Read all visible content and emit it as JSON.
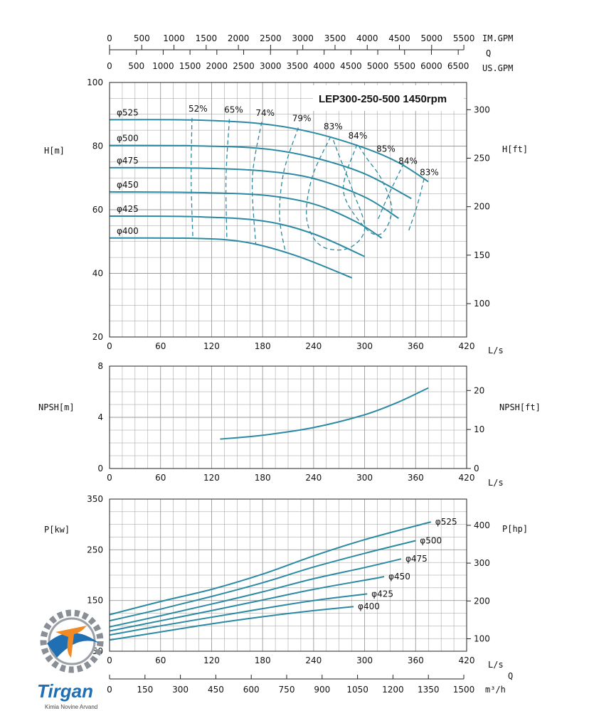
{
  "colors": {
    "curve": "#2b8aa3",
    "grid": "#9a9a9a",
    "axis": "#222222",
    "logo_blue": "#1f6fb2",
    "logo_orange": "#f08a24"
  },
  "logo": {
    "name": "Tirgan",
    "tagline": "Kimia Novine Arvand"
  },
  "chart_data": [
    {
      "id": "head",
      "type": "line",
      "title": "LEP300-250-500 1450rpm",
      "xlabel": "L/s",
      "ylabel": "H[m]",
      "ylabel_right": "H[ft]",
      "xlim": [
        0,
        420
      ],
      "ylim": [
        20,
        100
      ],
      "xticks": [
        0,
        60,
        120,
        180,
        240,
        300,
        360,
        420
      ],
      "yticks": [
        20,
        40,
        60,
        80,
        100
      ],
      "yticks_right": [
        100,
        150,
        200,
        250,
        300
      ],
      "grid": true,
      "top_axes": [
        {
          "unit": "IM.GPM",
          "ticks": [
            0,
            500,
            1000,
            1500,
            2000,
            2500,
            3000,
            3500,
            4000,
            4500,
            5000,
            5500
          ]
        },
        {
          "unit": "US.GPM",
          "ticks": [
            0,
            500,
            1000,
            1500,
            2000,
            2500,
            3000,
            3500,
            4000,
            4500,
            5000,
            5500,
            6000,
            6500
          ]
        }
      ],
      "top_axes_symbol": "Q",
      "series": [
        {
          "name": "φ525",
          "x": [
            0,
            100,
            180,
            240,
            300,
            340,
            375
          ],
          "y": [
            88.3,
            88.2,
            87.0,
            84.2,
            79.4,
            74.8,
            68.8
          ]
        },
        {
          "name": "φ500",
          "x": [
            0,
            100,
            180,
            240,
            300,
            355
          ],
          "y": [
            80.2,
            80.1,
            79.2,
            76.4,
            71.3,
            63.5
          ]
        },
        {
          "name": "φ475",
          "x": [
            0,
            100,
            180,
            240,
            300,
            340
          ],
          "y": [
            73.2,
            73.1,
            72.2,
            69.8,
            64.0,
            57.3
          ]
        },
        {
          "name": "φ450",
          "x": [
            0,
            100,
            180,
            240,
            290,
            320
          ],
          "y": [
            65.6,
            65.4,
            64.6,
            61.8,
            56.2,
            51.1
          ]
        },
        {
          "name": "φ425",
          "x": [
            0,
            100,
            180,
            240,
            300
          ],
          "y": [
            58.0,
            57.8,
            56.5,
            52.4,
            45.3
          ]
        },
        {
          "name": "φ400",
          "x": [
            0,
            100,
            160,
            220,
            285
          ],
          "y": [
            51.1,
            51.0,
            49.8,
            45.5,
            38.6
          ]
        }
      ],
      "efficiency_contours": [
        {
          "label": "52%",
          "x": [
            97,
            96,
            98
          ],
          "y": [
            88.8,
            70.0,
            51.0
          ]
        },
        {
          "label": "65%",
          "x": [
            141,
            137,
            138
          ],
          "y": [
            88.5,
            70.0,
            50.5
          ]
        },
        {
          "label": "74%",
          "x": [
            179,
            168,
            172
          ],
          "y": [
            87.6,
            70.0,
            49.0
          ]
        },
        {
          "label": "79%",
          "x": [
            222,
            205,
            200,
            207
          ],
          "y": [
            85.8,
            72.0,
            58.0,
            46.5
          ]
        },
        {
          "label": "83%",
          "x": [
            260,
            238,
            232,
            248,
            280,
            300,
            286,
            270,
            262
          ],
          "y": [
            83.0,
            70.0,
            57.0,
            48.8,
            47.8,
            54.0,
            66.0,
            77.0,
            82.8
          ]
        },
        {
          "label": "84%",
          "x": [
            291,
            275,
            300,
            320,
            332,
            320,
            303,
            293
          ],
          "y": [
            80.5,
            66.0,
            54.5,
            52.5,
            60.0,
            69.5,
            76.0,
            80.0
          ]
        },
        {
          "label": "84%",
          "x": [
            346,
            327,
            315
          ],
          "y": [
            74.6,
            64.0,
            56.5
          ]
        },
        {
          "label": "83%",
          "x": [
            370,
            362,
            352
          ],
          "y": [
            69.8,
            61.5,
            53.5
          ]
        }
      ],
      "efficiency_labels": [
        {
          "label": "52%",
          "x": 104,
          "y": 90.8
        },
        {
          "label": "65%",
          "x": 146,
          "y": 90.5
        },
        {
          "label": "74%",
          "x": 183,
          "y": 89.5
        },
        {
          "label": "79%",
          "x": 226,
          "y": 87.8
        },
        {
          "label": "83%",
          "x": 263,
          "y": 85.2
        },
        {
          "label": "84%",
          "x": 292,
          "y": 82.4
        },
        {
          "label": "85%",
          "x": 325,
          "y": 78.2
        },
        {
          "label": "84%",
          "x": 351,
          "y": 74.4
        },
        {
          "label": "83%",
          "x": 376,
          "y": 70.8
        }
      ]
    },
    {
      "id": "npsh",
      "type": "line",
      "xlabel": "L/s",
      "ylabel": "NPSH[m]",
      "ylabel_right": "NPSH[ft]",
      "xlim": [
        0,
        420
      ],
      "ylim": [
        0,
        8
      ],
      "xticks": [
        0,
        60,
        120,
        180,
        240,
        300,
        360,
        420
      ],
      "yticks": [
        0,
        4,
        8
      ],
      "yticks_right": [
        0,
        10,
        20
      ],
      "grid": true,
      "series": [
        {
          "name": "",
          "x": [
            130,
            180,
            240,
            300,
            340,
            375
          ],
          "y": [
            2.3,
            2.6,
            3.2,
            4.2,
            5.2,
            6.3
          ]
        }
      ]
    },
    {
      "id": "power",
      "type": "line",
      "xlabel": "L/s",
      "ylabel": "P[kw]",
      "ylabel_right": "P[hp]",
      "xlim": [
        0,
        420
      ],
      "ylim": [
        50,
        350
      ],
      "xticks": [
        0,
        60,
        120,
        180,
        240,
        300,
        360,
        420
      ],
      "yticks": [
        50,
        150,
        250,
        350
      ],
      "yticks_right": [
        100,
        200,
        300,
        400
      ],
      "grid": true,
      "bottom_axis": {
        "unit": "m³/h",
        "symbol": "Q",
        "ticks": [
          0,
          150,
          300,
          450,
          600,
          750,
          900,
          1050,
          1200,
          1350,
          1500
        ]
      },
      "series": [
        {
          "name": "φ525",
          "x": [
            0,
            60,
            120,
            180,
            240,
            300,
            378
          ],
          "y": [
            122,
            148,
            172,
            202,
            238,
            270,
            305
          ]
        },
        {
          "name": "φ500",
          "x": [
            0,
            60,
            120,
            180,
            240,
            300,
            360
          ],
          "y": [
            110,
            133,
            158,
            185,
            216,
            243,
            268
          ]
        },
        {
          "name": "φ475",
          "x": [
            0,
            60,
            120,
            180,
            240,
            300,
            343
          ],
          "y": [
            98,
            120,
            143,
            167,
            193,
            215,
            232
          ]
        },
        {
          "name": "φ450",
          "x": [
            0,
            60,
            120,
            180,
            240,
            300,
            323
          ],
          "y": [
            90,
            110,
            130,
            151,
            172,
            190,
            197
          ]
        },
        {
          "name": "φ425",
          "x": [
            0,
            60,
            120,
            180,
            240,
            303
          ],
          "y": [
            82,
            100,
            117,
            134,
            150,
            163
          ]
        },
        {
          "name": "φ400",
          "x": [
            0,
            60,
            120,
            180,
            240,
            287
          ],
          "y": [
            72,
            88,
            104,
            118,
            130,
            138
          ]
        }
      ]
    }
  ]
}
